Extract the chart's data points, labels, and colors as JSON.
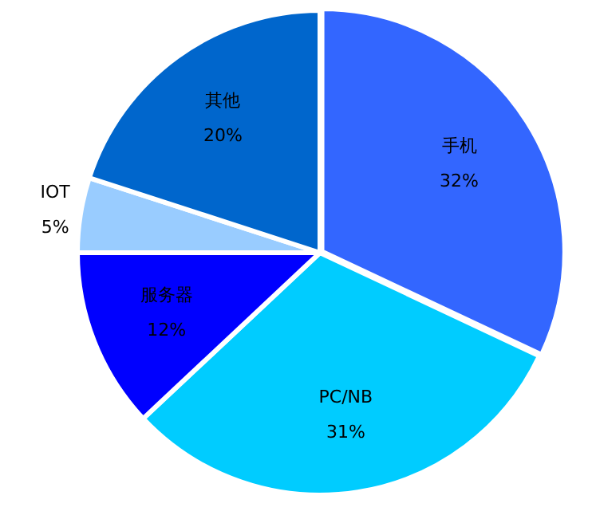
{
  "chart_data": {
    "type": "pie",
    "categories": [
      "手机",
      "PC/NB",
      "服务器",
      "IOT",
      "其他"
    ],
    "values": [
      32,
      31,
      12,
      5,
      20
    ],
    "value_labels": [
      "32%",
      "31%",
      "12%",
      "5%",
      "20%"
    ],
    "colors": [
      "#3366ff",
      "#00ccff",
      "#0000ff",
      "#99ccff",
      "#0066cc"
    ],
    "legend": false
  }
}
